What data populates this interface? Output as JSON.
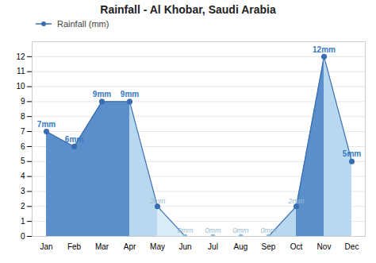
{
  "chart_data": {
    "type": "area",
    "title": "Rainfall - Al Khobar, Saudi Arabia",
    "categories": [
      "Jan",
      "Feb",
      "Mar",
      "Apr",
      "May",
      "Jun",
      "Jul",
      "Aug",
      "Sep",
      "Oct",
      "Nov",
      "Dec"
    ],
    "series": [
      {
        "name": "Rainfall (mm)",
        "color": "#3A6DB0",
        "colors": [
          "#5B8FCC",
          "#5B8FCC",
          "#5B8FCC",
          "#B8D8F0",
          "#D8EDF8",
          "#D8EDF8",
          "#D8EDF8",
          "#D8EDF8",
          "#B8D8F0",
          "#5B8FCC",
          "#B8D8F0"
        ],
        "marker": "circle",
        "values": [
          7,
          6,
          9,
          9,
          2,
          0,
          0,
          0,
          0,
          2,
          12,
          5
        ],
        "value_labels": [
          "7mm",
          "6mm",
          "9mm",
          "9mm",
          "2mm",
          "0mm",
          "0mm",
          "0mm",
          "0mm",
          "2mm",
          "12mm",
          "5mm"
        ]
      }
    ],
    "ylim": [
      0,
      13
    ],
    "yticks": [
      0,
      1,
      2,
      3,
      4,
      5,
      6,
      7,
      8,
      9,
      10,
      11,
      12
    ],
    "grid": true,
    "legend": "upper left",
    "data_labels": true
  }
}
